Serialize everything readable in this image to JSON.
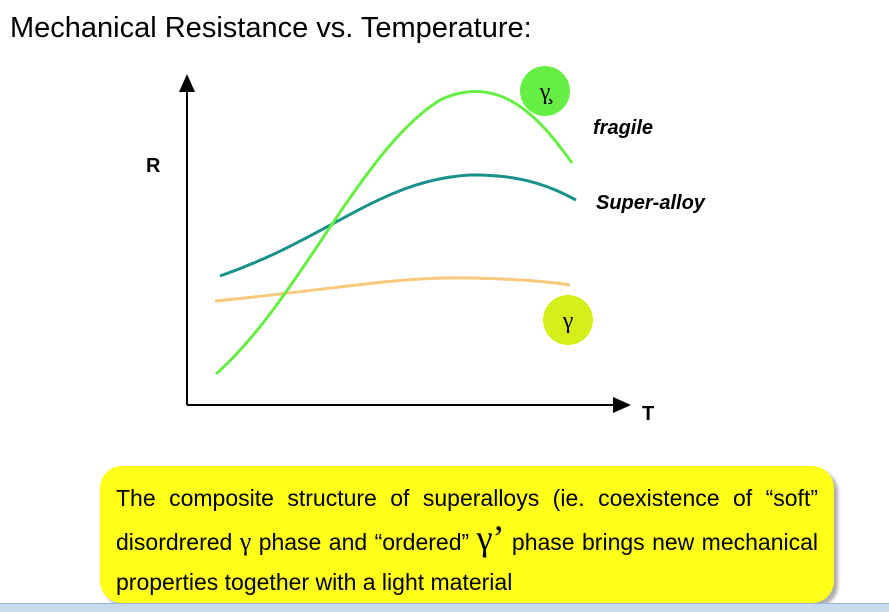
{
  "title": "Mechanical Resistance vs. Temperature:",
  "diagram": {
    "y_axis_label": "R",
    "x_axis_label": "T",
    "curves": [
      {
        "id": "gamma-prime",
        "color": "#66ee44",
        "label": "fragile"
      },
      {
        "id": "super-alloy",
        "color": "#17918a",
        "label": "Super-alloy"
      },
      {
        "id": "gamma",
        "color": "#f7c97a",
        "label": ""
      }
    ],
    "badges": [
      {
        "id": "gamma-prime-badge",
        "text": "γ̧",
        "color": "#66ee44"
      },
      {
        "id": "gamma-badge",
        "text": "γ",
        "color": "#d4ee1a"
      }
    ]
  },
  "callout": {
    "part1": "The composite structure of superalloys (ie. coexistence of “soft” disordrered",
    "gamma": "γ",
    "part2": "phase and “ordered”",
    "gamma_prime": "γ’",
    "part3": "phase brings new mechanical properties together with a light material",
    "background": "#ffff1a"
  }
}
